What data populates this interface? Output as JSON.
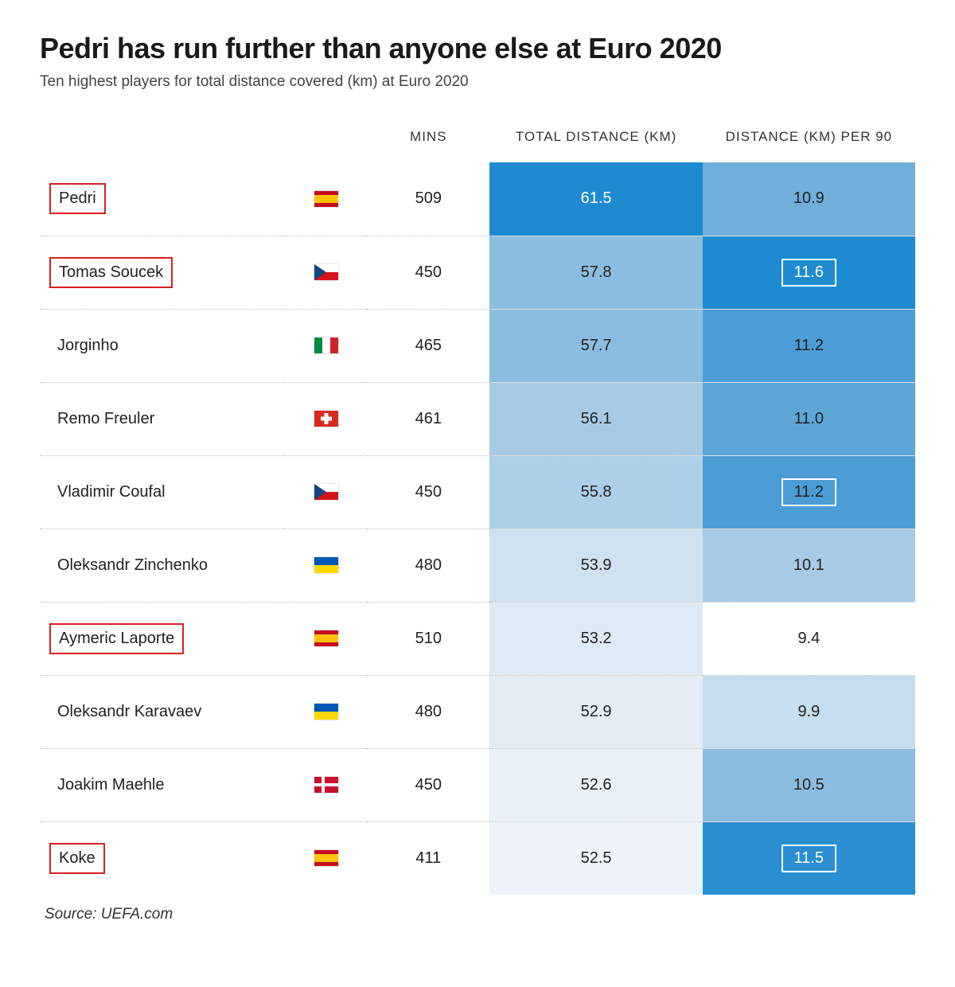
{
  "title": "Pedri has run further than anyone else at Euro 2020",
  "subtitle": "Ten highest players for total distance covered (km) at Euro 2020",
  "columns": {
    "mins": "MINS",
    "total_distance": "TOTAL DISTANCE (KM)",
    "per90": "DISTANCE (KM) PER 90"
  },
  "source": "Source: UEFA.com",
  "heatmap": {
    "dist_colors": [
      "#1e8bd0",
      "#8cbde1",
      "#8cbde1",
      "#a7cbe6",
      "#adcfe8",
      "#cfe0f0",
      "#deeaf5",
      "#e4edf6",
      "#e9f0f8",
      "#edf3f9"
    ],
    "per90_colors": [
      "#71afdb",
      "#1e8bd0",
      "#4c9cd6",
      "#5ca6d8",
      "#4c9cd6",
      "#a7cbe6",
      "#ffffff",
      "#c7def0",
      "#8cbde1",
      "#2a8ed0"
    ],
    "dist_text_white": [
      true,
      false,
      false,
      false,
      false,
      false,
      false,
      false,
      false,
      false
    ],
    "per90_text_white": [
      false,
      true,
      false,
      false,
      false,
      false,
      false,
      false,
      false,
      true
    ]
  },
  "rows": [
    {
      "name": "Pedri",
      "flag": "es",
      "mins": "509",
      "total_distance": "61.5",
      "per90": "10.9",
      "name_highlight": true,
      "per90_white_border": false
    },
    {
      "name": "Tomas Soucek",
      "flag": "cz",
      "mins": "450",
      "total_distance": "57.8",
      "per90": "11.6",
      "name_highlight": true,
      "per90_white_border": true
    },
    {
      "name": "Jorginho",
      "flag": "it",
      "mins": "465",
      "total_distance": "57.7",
      "per90": "11.2",
      "name_highlight": false,
      "per90_white_border": false
    },
    {
      "name": "Remo Freuler",
      "flag": "ch",
      "mins": "461",
      "total_distance": "56.1",
      "per90": "11.0",
      "name_highlight": false,
      "per90_white_border": false
    },
    {
      "name": "Vladimir Coufal",
      "flag": "cz",
      "mins": "450",
      "total_distance": "55.8",
      "per90": "11.2",
      "name_highlight": false,
      "per90_white_border": true
    },
    {
      "name": "Oleksandr Zinchenko",
      "flag": "ua",
      "mins": "480",
      "total_distance": "53.9",
      "per90": "10.1",
      "name_highlight": false,
      "per90_white_border": false
    },
    {
      "name": "Aymeric Laporte",
      "flag": "es",
      "mins": "510",
      "total_distance": "53.2",
      "per90": "9.4",
      "name_highlight": true,
      "per90_white_border": false
    },
    {
      "name": "Oleksandr Karavaev",
      "flag": "ua",
      "mins": "480",
      "total_distance": "52.9",
      "per90": "9.9",
      "name_highlight": false,
      "per90_white_border": false
    },
    {
      "name": "Joakim Maehle",
      "flag": "dk",
      "mins": "450",
      "total_distance": "52.6",
      "per90": "10.5",
      "name_highlight": false,
      "per90_white_border": false
    },
    {
      "name": "Koke",
      "flag": "es",
      "mins": "411",
      "total_distance": "52.5",
      "per90": "11.5",
      "name_highlight": true,
      "per90_white_border": true
    }
  ]
}
